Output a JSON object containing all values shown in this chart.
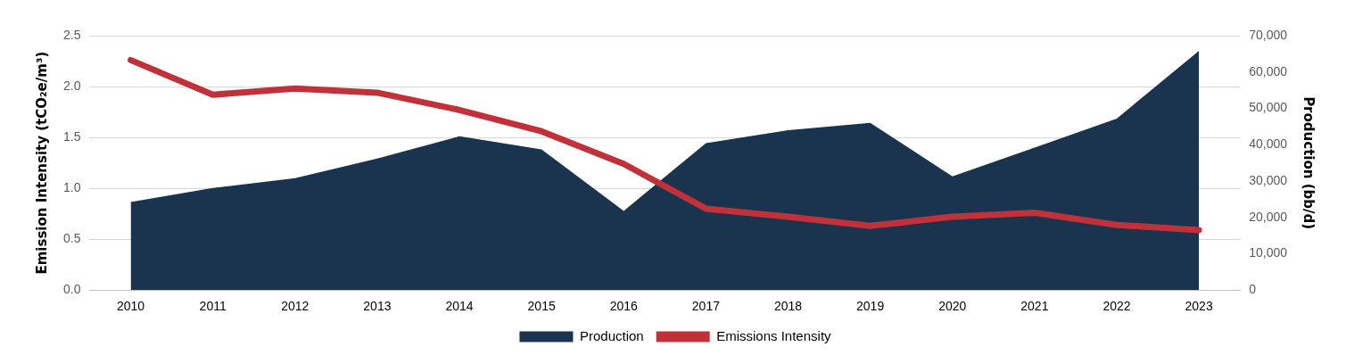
{
  "chart_data": {
    "type": "line",
    "ylabel": "Emission Intensity (tCO₂e/m³)",
    "y2label": "Production (bb/d)",
    "categories": [
      "2010",
      "2011",
      "2012",
      "2013",
      "2014",
      "2015",
      "2016",
      "2017",
      "2018",
      "2019",
      "2020",
      "2021",
      "2022",
      "2023"
    ],
    "series": [
      {
        "name": "Production",
        "type": "area",
        "axis": "y2",
        "color": "#1a344f",
        "values": [
          24200,
          28100,
          30800,
          36200,
          42300,
          38700,
          21800,
          40400,
          44000,
          46000,
          31300,
          39200,
          47200,
          65800
        ]
      },
      {
        "name": "Emissions Intensity",
        "color": "#c1313a",
        "values": [
          2.26,
          1.92,
          1.98,
          1.94,
          1.77,
          1.56,
          1.24,
          0.8,
          0.72,
          0.63,
          0.72,
          0.76,
          0.64,
          0.59
        ]
      }
    ],
    "ylim": [
      0,
      2.5
    ],
    "yticks": [
      {
        "value": 0,
        "label": "0.0"
      },
      {
        "value": 0.5,
        "label": "0.5"
      },
      {
        "value": 1,
        "label": "1.0"
      },
      {
        "value": 1.5,
        "label": "1.5"
      },
      {
        "value": 2,
        "label": "2.0"
      },
      {
        "value": 2.5,
        "label": "2.5"
      }
    ],
    "y2lim": [
      0,
      70000
    ],
    "y2ticks": [
      0,
      {
        "value": 10000,
        "label": "10,000"
      },
      {
        "value": 20000,
        "label": "20,000"
      },
      {
        "value": 30000,
        "label": "30,000"
      },
      {
        "value": 40000,
        "label": "40,000"
      },
      {
        "value": 50000,
        "label": "50,000"
      },
      {
        "value": 60000,
        "label": "60,000"
      },
      {
        "value": 70000,
        "label": "70,000"
      }
    ],
    "grid": "y",
    "legend": "bottom",
    "marker": "none",
    "line_style": "solid"
  }
}
